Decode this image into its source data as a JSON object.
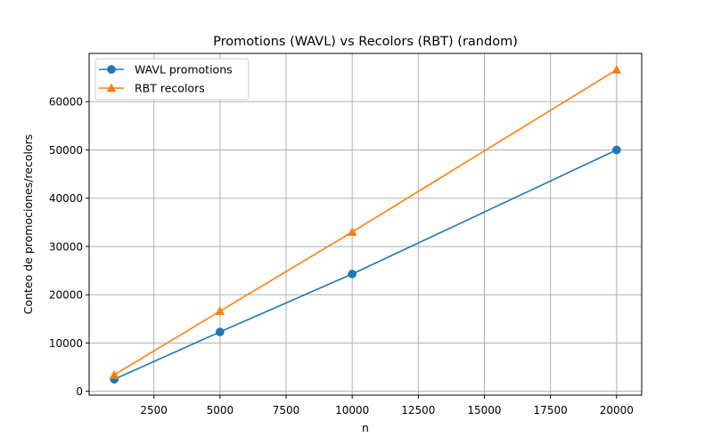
{
  "chart_data": {
    "type": "line",
    "title": "Promotions (WAVL) vs Recolors (RBT) (random)",
    "xlabel": "n",
    "ylabel": "Conteo de promociones/recolors",
    "x": [
      1000,
      5000,
      10000,
      20000
    ],
    "series": [
      {
        "name": "WAVL promotions",
        "values": [
          2500,
          12300,
          24300,
          50000
        ],
        "color": "#1f77b4",
        "marker": "circle"
      },
      {
        "name": "RBT recolors",
        "values": [
          3400,
          16600,
          33000,
          66600
        ],
        "color": "#ff7f0e",
        "marker": "triangle"
      }
    ],
    "xlim": [
      50,
      20950
    ],
    "ylim": [
      -800,
      70000
    ],
    "xticks": [
      2500,
      5000,
      7500,
      10000,
      12500,
      15000,
      17500,
      20000
    ],
    "xtick_labels": [
      "2500",
      "5000",
      "7500",
      "10000",
      "12500",
      "15000",
      "17500",
      "20000"
    ],
    "yticks": [
      0,
      10000,
      20000,
      30000,
      40000,
      50000,
      60000
    ],
    "ytick_labels": [
      "0",
      "10000",
      "20000",
      "30000",
      "40000",
      "50000",
      "60000"
    ],
    "grid": true,
    "legend_position": "top-left"
  }
}
